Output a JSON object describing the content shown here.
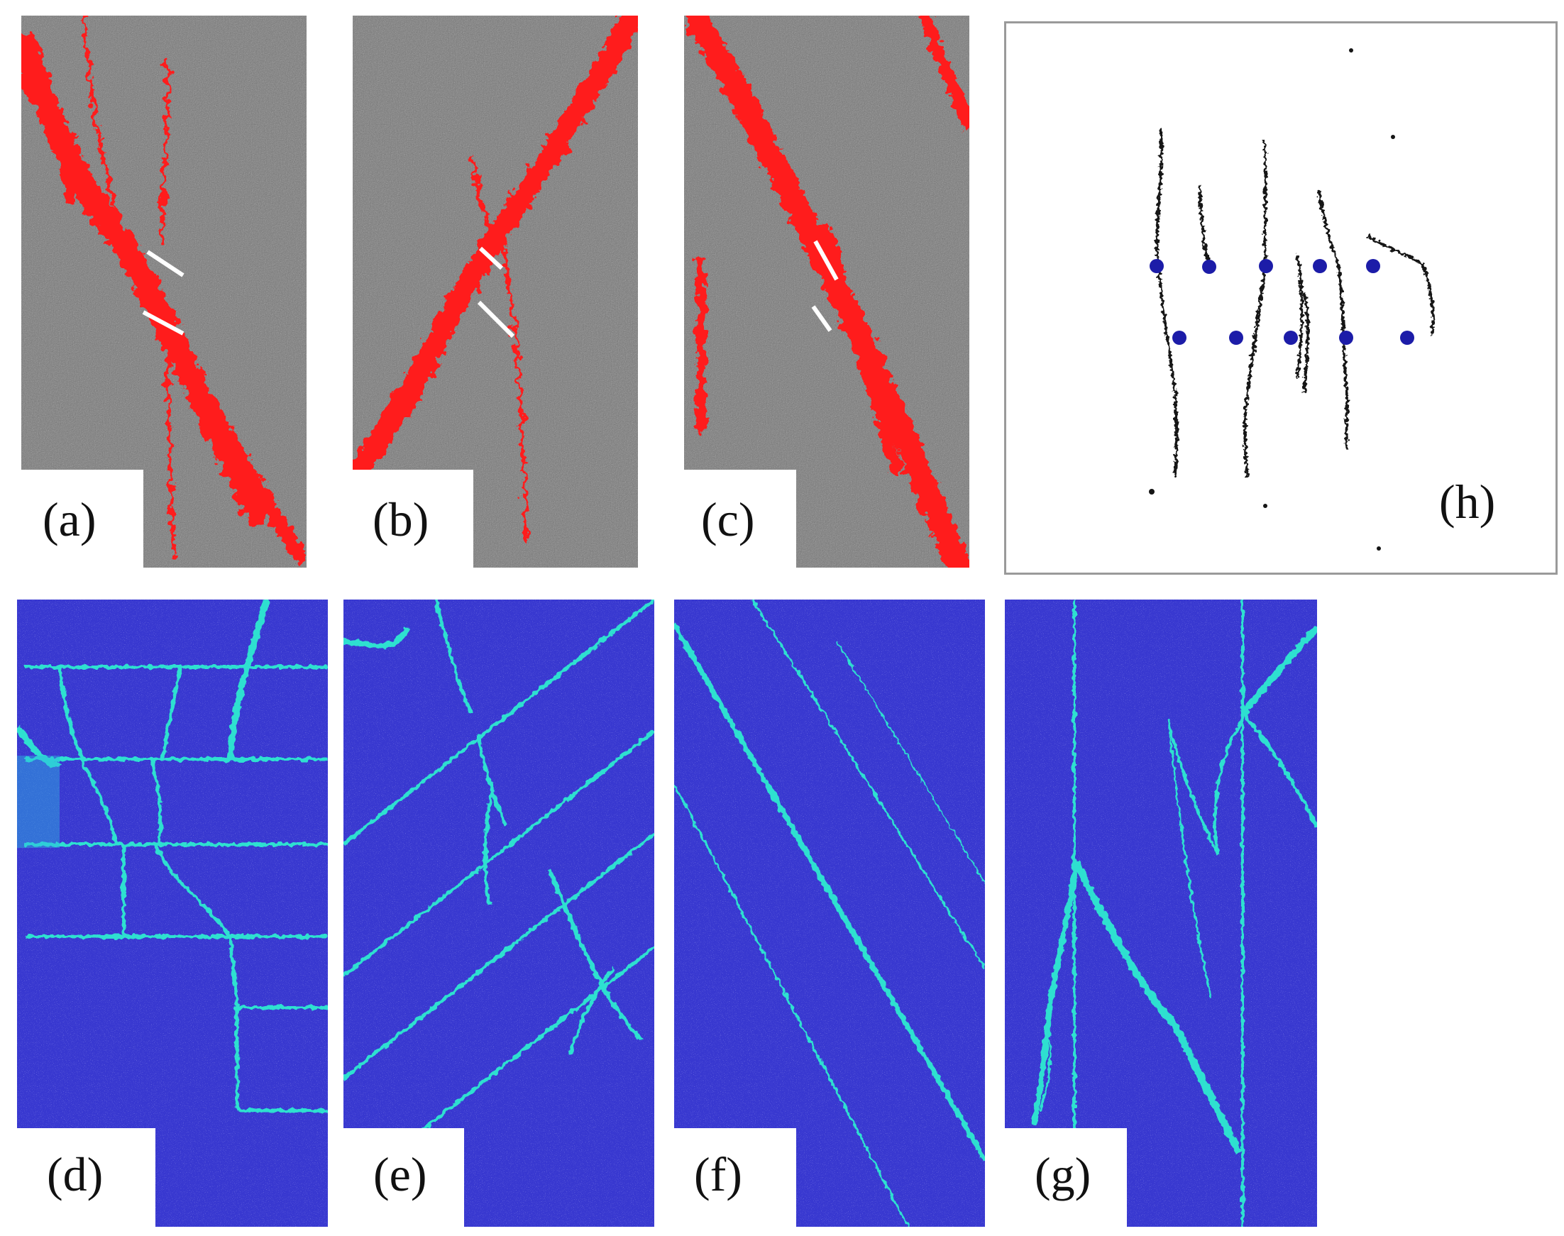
{
  "figure": {
    "panels": [
      {
        "id": "a",
        "label": "(a)",
        "style": "gray-red",
        "bg": "#777777",
        "accent": "#ff1a1a"
      },
      {
        "id": "b",
        "label": "(b)",
        "style": "gray-red",
        "bg": "#777777",
        "accent": "#ff1a1a"
      },
      {
        "id": "c",
        "label": "(c)",
        "style": "gray-red",
        "bg": "#777777",
        "accent": "#ff1a1a"
      },
      {
        "id": "h",
        "label": "(h)",
        "style": "crack-map",
        "bg": "#ffffff",
        "accent": "#1c1ca8"
      },
      {
        "id": "d",
        "label": "(d)",
        "style": "blue-field",
        "bg": "#3b3bd6",
        "accent": "#2fe0d0"
      },
      {
        "id": "e",
        "label": "(e)",
        "style": "blue-field",
        "bg": "#3b3bd6",
        "accent": "#2fe0d0"
      },
      {
        "id": "f",
        "label": "(f)",
        "style": "blue-field",
        "bg": "#3b3bd6",
        "accent": "#2fe0d0"
      },
      {
        "id": "g",
        "label": "(g)",
        "style": "blue-field",
        "bg": "#3b3bd6",
        "accent": "#2fe0d0"
      }
    ]
  }
}
